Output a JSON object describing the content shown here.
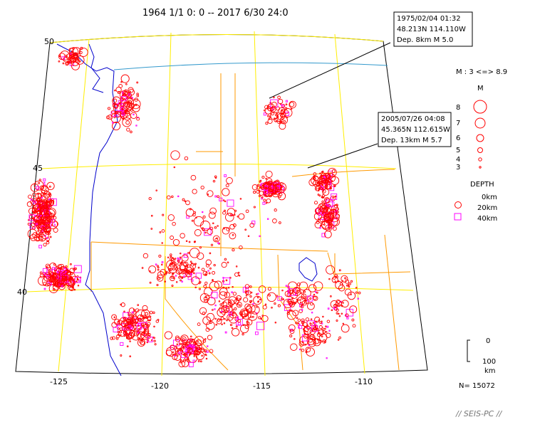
{
  "title": "1964 1/1 0: 0 -- 2017 6/30 24:0",
  "annotations": [
    {
      "date": "1975/02/04 01:32",
      "coords": "48.213N  114.110W",
      "depth_mag": "Dep. 8km   M 5.0"
    },
    {
      "date": "2005/07/26 04:08",
      "coords": "45.365N  112.615W",
      "depth_mag": "Dep. 13km   M 5.7"
    }
  ],
  "legend": {
    "mag_range": "M : 3 <=> 8.9",
    "mag_header": "M",
    "mag_values": [
      "8",
      "7",
      "6",
      "5",
      "4",
      "3"
    ],
    "depth_header": "DEPTH",
    "depth_values": [
      "0km",
      "20km",
      "40km"
    ]
  },
  "scale": {
    "top": "0",
    "bottom": "100",
    "unit": "km"
  },
  "count": "N= 15072",
  "lat_labels": [
    "50",
    "45",
    "40"
  ],
  "lon_labels": [
    "-125",
    "-120",
    "-115",
    "-110"
  ],
  "credit": "// SEIS-PC //",
  "colors": {
    "shallow": "#ff0000",
    "deep": "#ff00ff",
    "grid": "#ffee00",
    "border": "#ff9900",
    "coast": "#0000cc",
    "intl": "#3399cc"
  }
}
